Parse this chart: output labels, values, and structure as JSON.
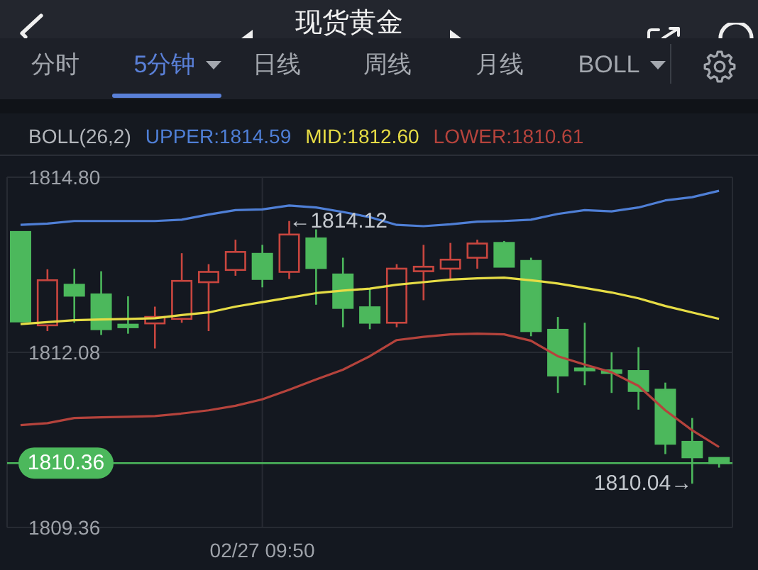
{
  "chart_data": {
    "type": "candlestick",
    "title": "现货黄金",
    "annotations": [
      "分时",
      "5分钟",
      "日线",
      "周线",
      "月线",
      "BOLL",
      "←1814.12",
      "1810.04→"
    ],
    "categories": [
      null,
      null,
      null,
      null,
      null,
      null,
      null,
      null,
      null,
      "02/27 09:50",
      null,
      null,
      null,
      null,
      null,
      null,
      null,
      null,
      null,
      null,
      null,
      null,
      null,
      null,
      null,
      null,
      null
    ],
    "ohlc": [
      [
        1813.95,
        1813.95,
        1812.56,
        1812.56
      ],
      [
        1812.5,
        1813.37,
        1812.41,
        1813.2
      ],
      [
        1813.13,
        1813.38,
        1812.54,
        1812.96
      ],
      [
        1812.98,
        1813.34,
        1812.35,
        1812.44
      ],
      [
        1812.51,
        1812.95,
        1812.37,
        1812.47
      ],
      [
        1812.53,
        1812.79,
        1812.14,
        1812.63
      ],
      [
        1812.6,
        1813.62,
        1812.54,
        1813.19
      ],
      [
        1813.17,
        1813.45,
        1812.41,
        1813.33
      ],
      [
        1813.36,
        1813.83,
        1813.27,
        1813.64
      ],
      [
        1813.61,
        1813.75,
        1813.09,
        1813.22
      ],
      [
        1813.33,
        1814.12,
        1813.22,
        1813.91
      ],
      [
        1813.85,
        1813.99,
        1812.82,
        1813.39
      ],
      [
        1813.29,
        1813.55,
        1812.47,
        1812.77
      ],
      [
        1812.78,
        1813.06,
        1812.44,
        1812.54
      ],
      [
        1812.54,
        1813.45,
        1812.47,
        1813.38
      ],
      [
        1813.34,
        1813.75,
        1812.89,
        1813.41
      ],
      [
        1813.38,
        1813.78,
        1813.22,
        1813.52
      ],
      [
        1813.55,
        1813.83,
        1813.38,
        1813.77
      ],
      [
        1813.78,
        1813.81,
        1813.41,
        1813.41
      ],
      [
        1813.5,
        1813.55,
        1812.33,
        1812.41
      ],
      [
        1812.43,
        1812.63,
        1811.45,
        1811.72
      ],
      [
        1811.83,
        1812.54,
        1811.57,
        1811.8
      ],
      [
        1811.8,
        1812.08,
        1811.45,
        1811.76
      ],
      [
        1811.79,
        1812.16,
        1811.19,
        1811.48
      ],
      [
        1811.5,
        1811.61,
        1810.5,
        1810.66
      ],
      [
        1810.69,
        1811.06,
        1810.04,
        1810.45
      ],
      [
        1810.44,
        1810.44,
        1810.29,
        1810.36
      ]
    ],
    "colors": [
      "#4cb85c",
      "#c9463f",
      "#4cb85c",
      "#4cb85c",
      "#4cb85c",
      "#c9463f",
      "#c9463f",
      "#c9463f",
      "#c9463f",
      "#4cb85c",
      "#c9463f",
      "#4cb85c",
      "#4cb85c",
      "#4cb85c",
      "#c9463f",
      "#c9463f",
      "#c9463f",
      "#c9463f",
      "#4cb85c",
      "#4cb85c",
      "#4cb85c",
      "#4cb85c",
      "#4cb85c",
      "#4cb85c",
      "#4cb85c",
      "#4cb85c",
      "#4cb85c"
    ],
    "series": [
      {
        "type": "line",
        "name": "UPPER:1814.59",
        "color": "#4f7fd6",
        "values": [
          1814.06,
          1814.08,
          1814.12,
          1814.12,
          1814.12,
          1814.12,
          1814.14,
          1814.22,
          1814.29,
          1814.3,
          1814.36,
          1814.33,
          1814.26,
          1814.18,
          1814.06,
          1814.04,
          1814.07,
          1814.11,
          1814.12,
          1814.14,
          1814.23,
          1814.29,
          1814.27,
          1814.33,
          1814.44,
          1814.49,
          1814.59
        ]
      },
      {
        "type": "line",
        "name": "MID:1812.60",
        "color": "#e6dc45",
        "values": [
          1812.52,
          1812.55,
          1812.58,
          1812.59,
          1812.6,
          1812.61,
          1812.66,
          1812.7,
          1812.79,
          1812.86,
          1812.93,
          1813.0,
          1813.04,
          1813.07,
          1813.13,
          1813.17,
          1813.21,
          1813.23,
          1813.24,
          1813.2,
          1813.15,
          1813.08,
          1813.01,
          1812.92,
          1812.8,
          1812.7,
          1812.6
        ]
      },
      {
        "type": "line",
        "name": "LOWER:1810.61",
        "color": "#b5433c",
        "values": [
          1810.95,
          1810.98,
          1811.06,
          1811.07,
          1811.08,
          1811.09,
          1811.13,
          1811.18,
          1811.25,
          1811.35,
          1811.5,
          1811.66,
          1811.81,
          1812.02,
          1812.27,
          1812.32,
          1812.36,
          1812.37,
          1812.36,
          1812.26,
          1812.02,
          1811.89,
          1811.77,
          1811.56,
          1811.18,
          1810.87,
          1810.61
        ]
      }
    ],
    "legend": "top",
    "legend_title": "BOLL(26,2)",
    "ylim": [
      1809.36,
      1814.8
    ],
    "yticks": [
      1809.36,
      1812.08,
      {
        "value": 1814.8,
        "label": "1814.80"
      }
    ],
    "grid": true,
    "ref_lines": [
      {
        "axis": "y",
        "value": 1810.36,
        "label": "1810.36",
        "color": "#4cb85c"
      }
    ]
  }
}
